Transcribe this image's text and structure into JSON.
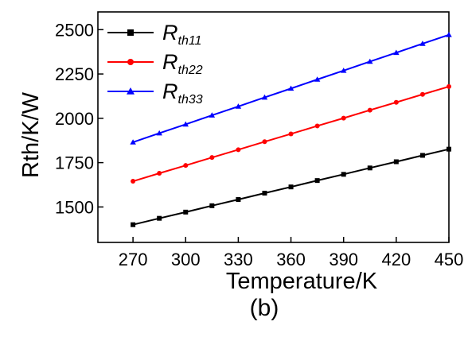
{
  "chart_data": {
    "type": "line",
    "title": "",
    "xlabel": "Temperature/K",
    "ylabel": "Rth/K/W",
    "caption": "(b)",
    "xlim": [
      250,
      450
    ],
    "ylim": [
      1300,
      2600
    ],
    "xticks": [
      270,
      300,
      330,
      360,
      390,
      420,
      450
    ],
    "yticks": [
      1500,
      1750,
      2000,
      2250,
      2500
    ],
    "grid": false,
    "legend_position": "top-left",
    "x": [
      270,
      285,
      300,
      315,
      330,
      345,
      360,
      375,
      390,
      405,
      420,
      435,
      450
    ],
    "series": [
      {
        "name": "R_th11",
        "name_main": "R",
        "name_sub": "th11",
        "color": "#000000",
        "marker": "square",
        "values": [
          1400,
          1436,
          1471,
          1507,
          1542,
          1578,
          1613,
          1649,
          1684,
          1720,
          1755,
          1791,
          1826
        ]
      },
      {
        "name": "R_th22",
        "name_main": "R",
        "name_sub": "th22",
        "color": "#ff0000",
        "marker": "circle",
        "values": [
          1645,
          1690,
          1734,
          1779,
          1823,
          1868,
          1912,
          1957,
          2001,
          2046,
          2090,
          2135,
          2179
        ]
      },
      {
        "name": "R_th33",
        "name_main": "R",
        "name_sub": "th33",
        "color": "#0000ff",
        "marker": "triangle",
        "values": [
          1865,
          1916,
          1966,
          2017,
          2067,
          2118,
          2168,
          2219,
          2269,
          2320,
          2370,
          2421,
          2471
        ]
      }
    ]
  }
}
